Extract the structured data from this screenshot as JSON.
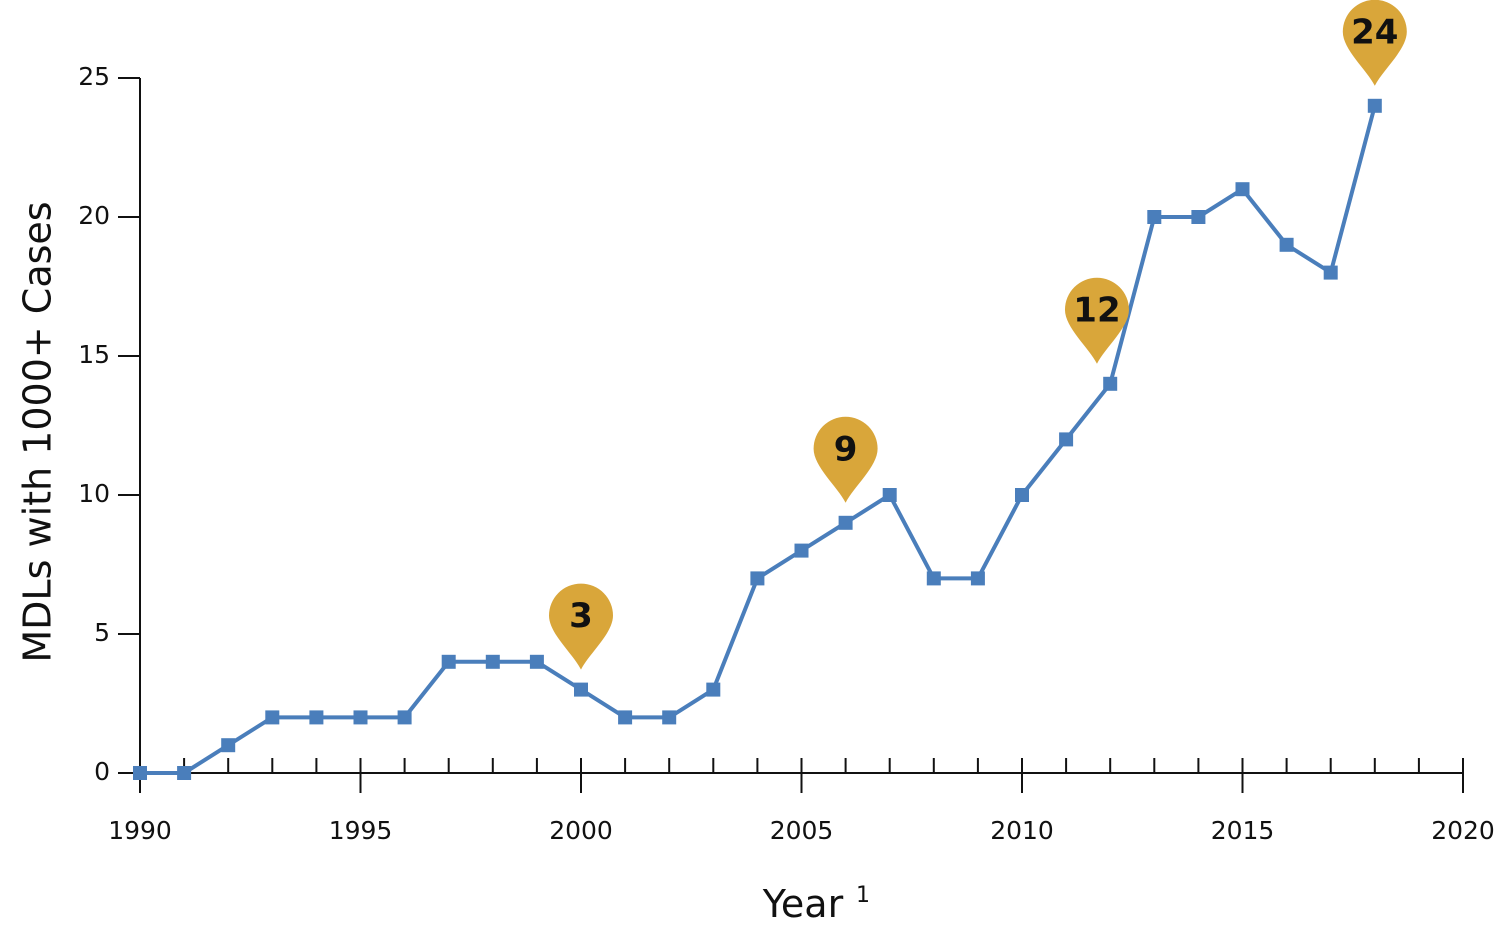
{
  "chart_data": {
    "type": "line",
    "xlabel": "Year",
    "xlabel_superscript": "1",
    "ylabel": "MDLs with 1000+ Cases",
    "xlim": [
      1990,
      2020
    ],
    "ylim": [
      0,
      25
    ],
    "x_ticks_labeled": [
      "1990",
      "1995",
      "2000",
      "2005",
      "2010",
      "2015",
      "2020"
    ],
    "y_ticks_labeled": [
      "0",
      "5",
      "10",
      "15",
      "20",
      "25"
    ],
    "grid": false,
    "series": [
      {
        "color": "#4a7ebb",
        "marker": "square",
        "x": [
          1990,
          1991,
          1992,
          1993,
          1994,
          1995,
          1996,
          1997,
          1998,
          1999,
          2000,
          2001,
          2002,
          2003,
          2004,
          2005,
          2006,
          2007,
          2008,
          2009,
          2010,
          2011,
          2012,
          2013,
          2014,
          2015,
          2016,
          2017,
          2018
        ],
        "y": [
          0,
          0,
          1,
          2,
          2,
          2,
          2,
          4,
          4,
          4,
          3,
          2,
          2,
          3,
          7,
          8,
          9,
          10,
          7,
          7,
          10,
          12,
          14,
          20,
          20,
          21,
          19,
          18,
          24
        ]
      }
    ],
    "annotations": [
      {
        "label": "3",
        "x": 2000,
        "y": 3,
        "color": "#d9a63a"
      },
      {
        "label": "9",
        "x": 2006,
        "y": 9,
        "color": "#d9a63a"
      },
      {
        "label": "12",
        "x": 2011.7,
        "y": 14,
        "color": "#d9a63a"
      },
      {
        "label": "24",
        "x": 2018,
        "y": 24,
        "color": "#d9a63a"
      }
    ]
  }
}
